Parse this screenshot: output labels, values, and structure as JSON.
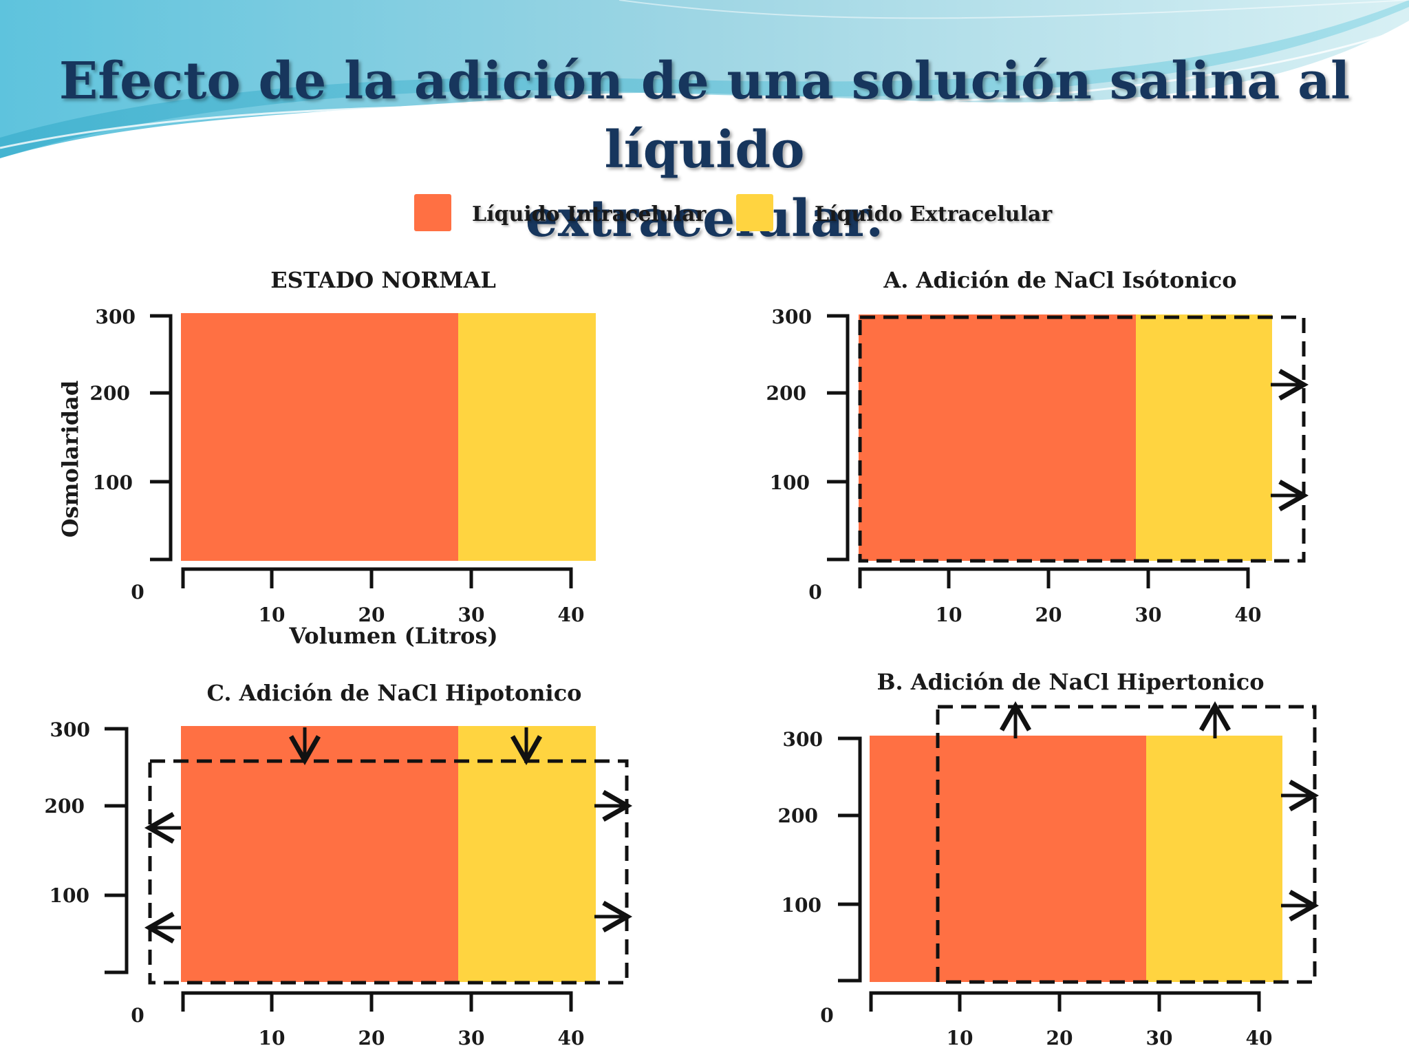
{
  "slide": {
    "title_line1": "Efecto de la adición de una solución salina al líquido",
    "title_line2": "extracelular."
  },
  "colors": {
    "intracellular": "#ff7043",
    "extracellular": "#ffd440",
    "title": "#17365d",
    "ink": "#111111"
  },
  "legend": {
    "intracellular_label": "Líquido Intracelular",
    "extracellular_label": "Líquido Extracelular"
  },
  "axes": {
    "y_label": "Osmolaridad",
    "x_label": "Volumen (Litros)",
    "y_ticks": [
      "300",
      "200",
      "100"
    ],
    "x_ticks": [
      "10",
      "20",
      "30",
      "40"
    ],
    "origin": "0"
  },
  "panels": {
    "normal": {
      "title": "ESTADO NORMAL",
      "intracellular_volume": 28,
      "total_volume": 42,
      "osmolarity": 300
    },
    "isotonic": {
      "title": "A. Adición de NaCl Isótonico",
      "intracellular_volume": 28,
      "total_volume": 42,
      "osmolarity": 300
    },
    "hypotonic": {
      "title": "C. Adición de NaCl Hipotonico",
      "intracellular_volume": 28,
      "total_volume": 42,
      "osmolarity": 300
    },
    "hypertonic": {
      "title": "B. Adición de NaCl Hipertonico",
      "intracellular_volume": 28,
      "total_volume": 42,
      "osmolarity": 300
    }
  }
}
